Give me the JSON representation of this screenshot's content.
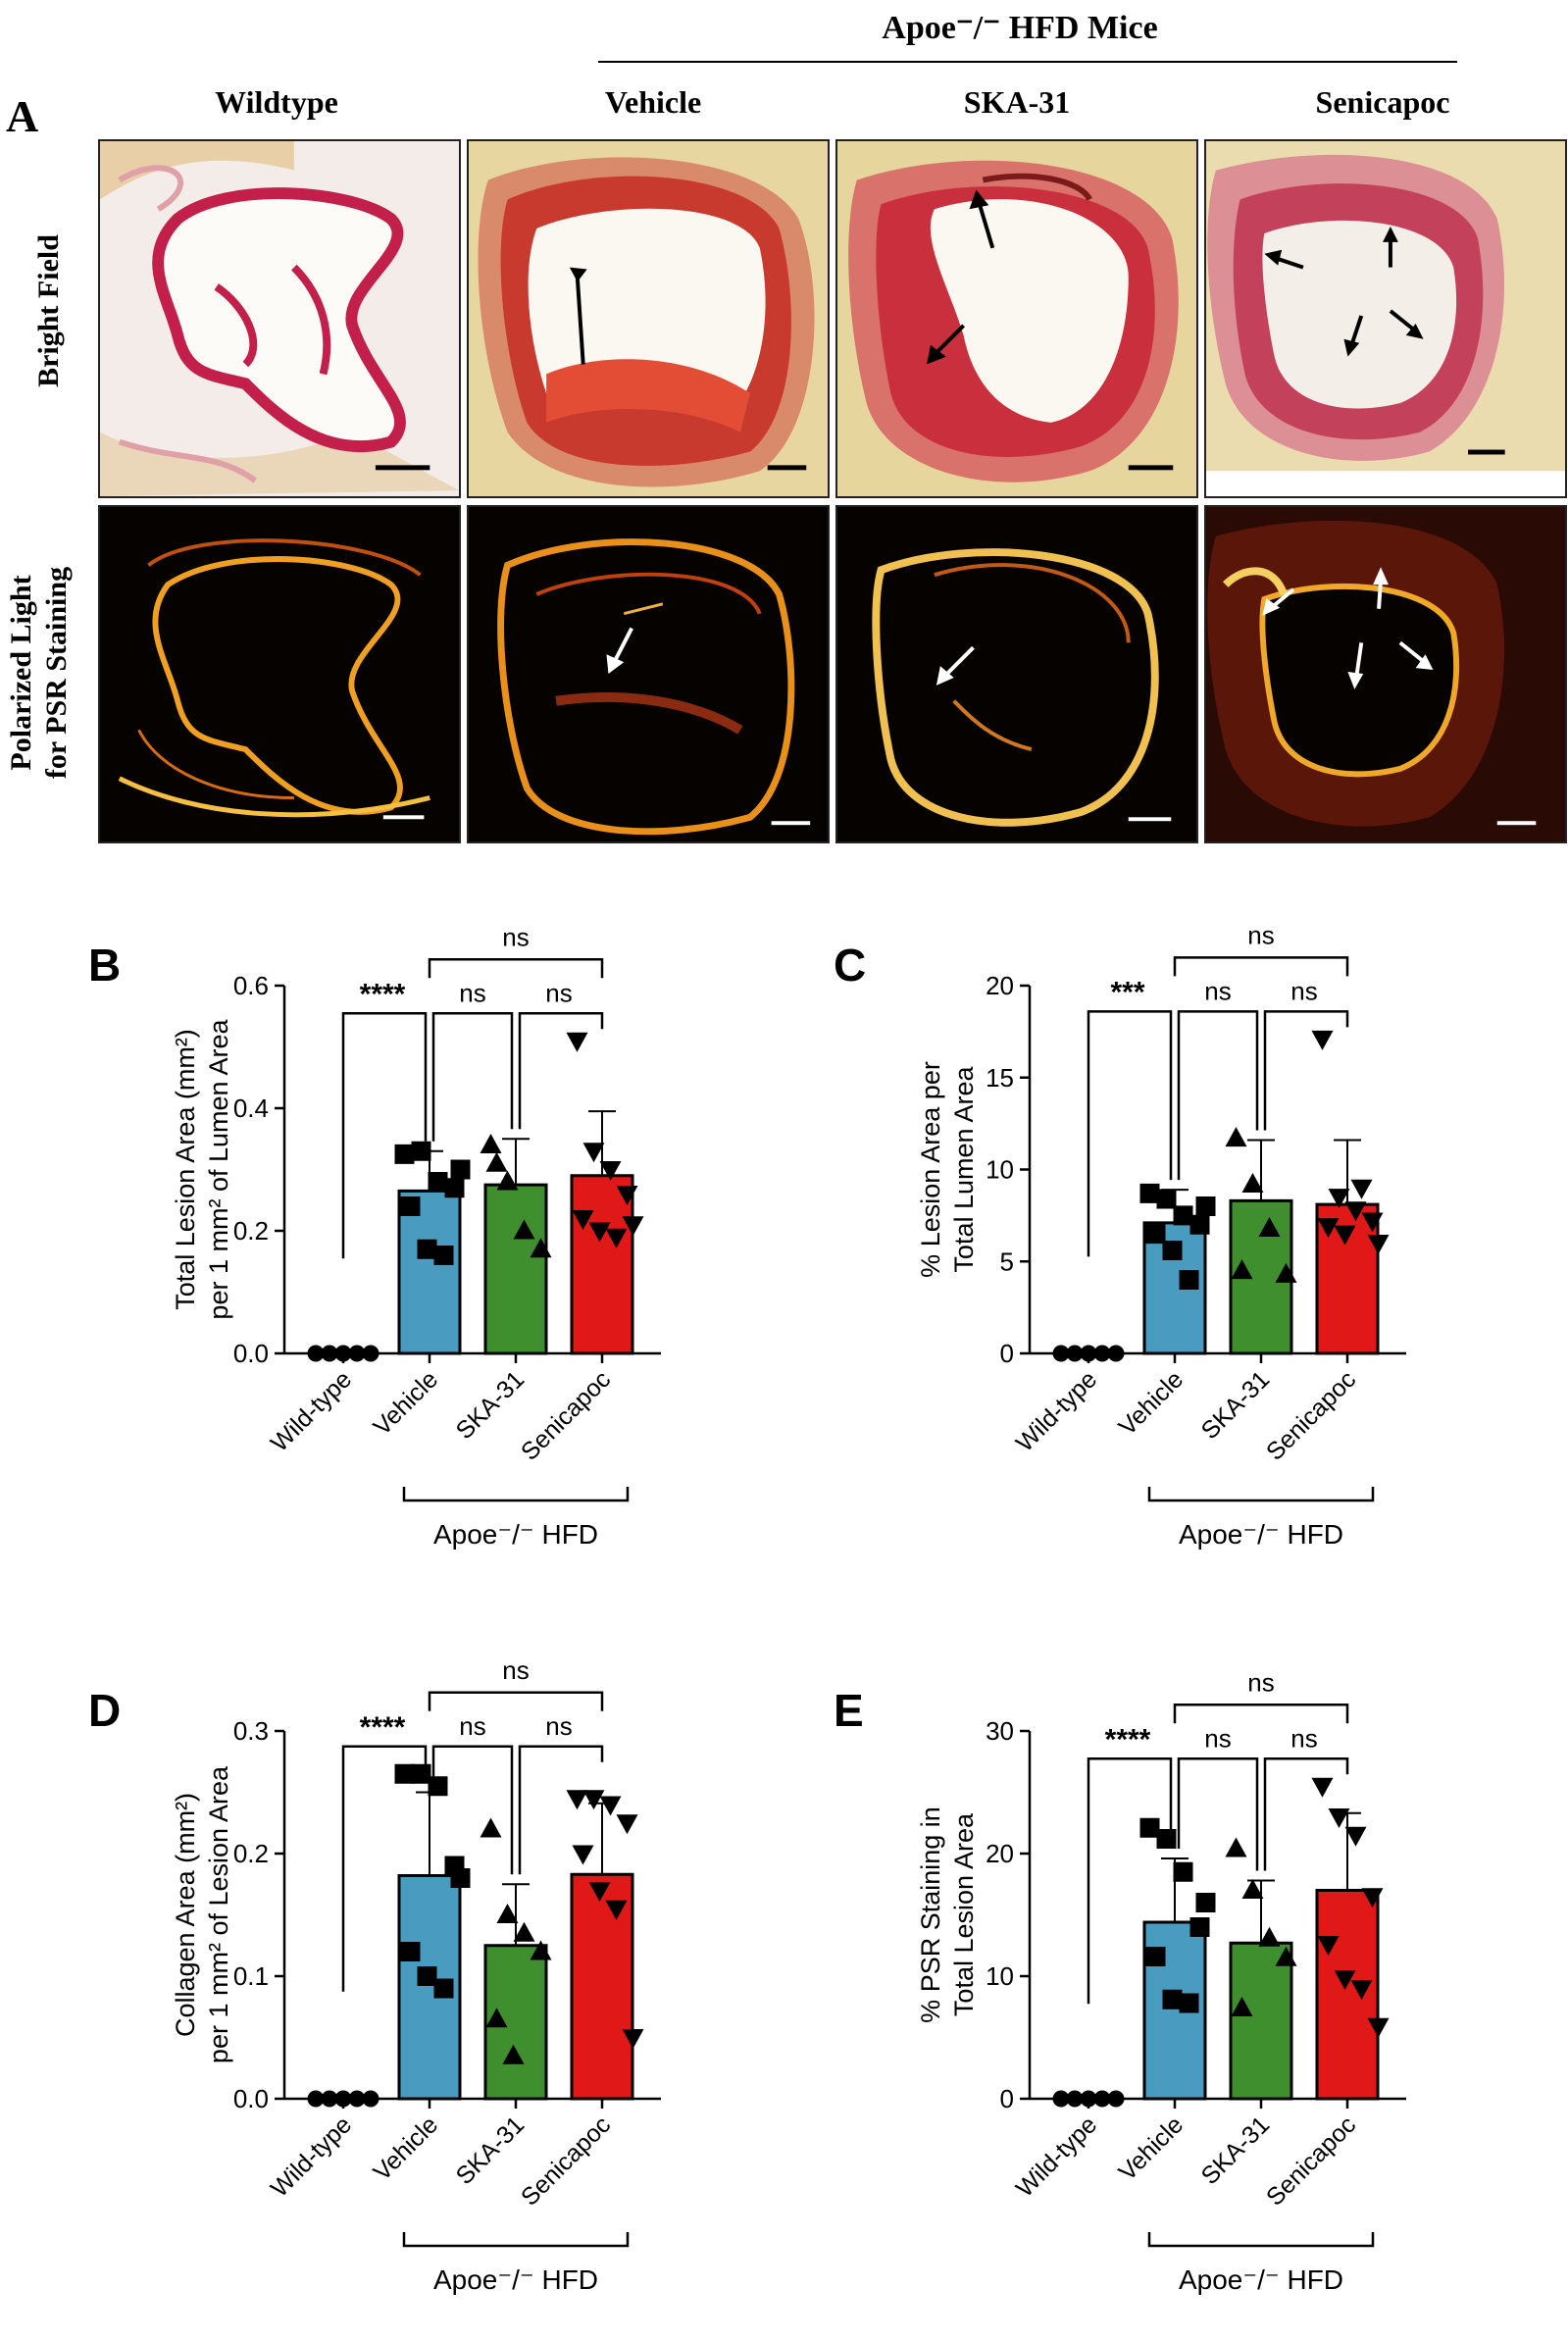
{
  "header": {
    "group_label": "Apoe⁻/⁻ HFD Mice",
    "panel_a_letter": "A",
    "columns": [
      "Wildtype",
      "Vehicle",
      "SKA-31",
      "Senicapoc"
    ],
    "rows": [
      "Bright Field",
      "Polarized Light\nfor PSR Staining"
    ]
  },
  "colors": {
    "vehicle": "#4a9bc0",
    "ska31": "#3f8f2f",
    "senicapoc": "#e01818",
    "stain_red": "#c8203c",
    "background_tissue": "#e9d6a0"
  },
  "chart_data": [
    {
      "letter": "B",
      "type": "bar",
      "categories": [
        "Wild-type",
        "Vehicle",
        "SKA-31",
        "Senicapoc"
      ],
      "group_label": "Apoe⁻/⁻ HFD",
      "ylabel_lines": [
        "Total Lesion Area (mm²)",
        "per 1 mm² of Lumen Area"
      ],
      "ylim": [
        0,
        0.6
      ],
      "yticks": [
        "0.0",
        "0.2",
        "0.4",
        "0.6"
      ],
      "ytick_values": [
        0,
        0.2,
        0.4,
        0.6
      ],
      "means": [
        0,
        0.265,
        0.275,
        0.29
      ],
      "sd": [
        0,
        0.065,
        0.075,
        0.105
      ],
      "points": [
        [
          0,
          0,
          0,
          0,
          0
        ],
        [
          0.325,
          0.33,
          0.28,
          0.27,
          0.24,
          0.17,
          0.16,
          0.3
        ],
        [
          0.34,
          0.28,
          0.2,
          0.17,
          0.31
        ],
        [
          0.51,
          0.33,
          0.3,
          0.26,
          0.22,
          0.2,
          0.19,
          0.21
        ]
      ],
      "markers": [
        "circle",
        "square",
        "triangle-up",
        "triangle-down"
      ],
      "significance": {
        "top": "ns",
        "pairs": [
          "****",
          "ns",
          "ns"
        ]
      }
    },
    {
      "letter": "C",
      "type": "bar",
      "categories": [
        "Wild-type",
        "Vehicle",
        "SKA-31",
        "Senicapoc"
      ],
      "group_label": "Apoe⁻/⁻ HFD",
      "ylabel_lines": [
        "% Lesion Area per",
        "Total Lumen Area"
      ],
      "ylim": [
        0,
        20
      ],
      "yticks": [
        "0",
        "5",
        "10",
        "15",
        "20"
      ],
      "ytick_values": [
        0,
        5,
        10,
        15,
        20
      ],
      "means": [
        0,
        7.1,
        8.3,
        8.1
      ],
      "sd": [
        0,
        1.8,
        3.3,
        3.5
      ],
      "points": [
        [
          0,
          0,
          0,
          0,
          0
        ],
        [
          8.7,
          8.4,
          7.5,
          7.0,
          6.5,
          5.6,
          4.0,
          8.0
        ],
        [
          11.7,
          9.2,
          6.8,
          4.3,
          4.5
        ],
        [
          17.1,
          8.5,
          7.8,
          7.2,
          6.9,
          6.5,
          9.0,
          6.0
        ]
      ],
      "markers": [
        "circle",
        "square",
        "triangle-up",
        "triangle-down"
      ],
      "significance": {
        "top": "ns",
        "pairs": [
          "***",
          "ns",
          "ns"
        ]
      }
    },
    {
      "letter": "D",
      "type": "bar",
      "categories": [
        "Wild-type",
        "Vehicle",
        "SKA-31",
        "Senicapoc"
      ],
      "group_label": "Apoe⁻/⁻ HFD",
      "ylabel_lines": [
        "Collagen Area (mm²)",
        "per 1 mm² of Lesion Area"
      ],
      "ylim": [
        0,
        0.3
      ],
      "yticks": [
        "0.0",
        "0.1",
        "0.2",
        "0.3"
      ],
      "ytick_values": [
        0,
        0.1,
        0.2,
        0.3
      ],
      "means": [
        0,
        0.182,
        0.125,
        0.183
      ],
      "sd": [
        0,
        0.068,
        0.05,
        0.058
      ],
      "points": [
        [
          0,
          0,
          0,
          0,
          0
        ],
        [
          0.265,
          0.265,
          0.255,
          0.19,
          0.12,
          0.1,
          0.09,
          0.18
        ],
        [
          0.22,
          0.15,
          0.135,
          0.12,
          0.065,
          0.035
        ],
        [
          0.245,
          0.245,
          0.24,
          0.225,
          0.2,
          0.17,
          0.155,
          0.05
        ]
      ],
      "markers": [
        "circle",
        "square",
        "triangle-up",
        "triangle-down"
      ],
      "significance": {
        "top": "ns",
        "pairs": [
          "****",
          "ns",
          "ns"
        ]
      }
    },
    {
      "letter": "E",
      "type": "bar",
      "categories": [
        "Wild-type",
        "Vehicle",
        "SKA-31",
        "Senicapoc"
      ],
      "group_label": "Apoe⁻/⁻ HFD",
      "ylabel_lines": [
        "% PSR Staining in",
        "Total Lesion Area"
      ],
      "ylim": [
        0,
        30
      ],
      "yticks": [
        "0",
        "10",
        "20",
        "30"
      ],
      "ytick_values": [
        0,
        10,
        20,
        30
      ],
      "means": [
        0,
        14.4,
        12.7,
        17.0
      ],
      "sd": [
        0,
        5.2,
        5.1,
        6.3
      ],
      "points": [
        [
          0,
          0,
          0,
          0,
          0
        ],
        [
          22.1,
          21.2,
          18.5,
          14.0,
          11.6,
          8.1,
          7.8,
          16.0
        ],
        [
          20.4,
          17.0,
          13.1,
          11.5,
          7.4
        ],
        [
          25.5,
          23.0,
          21.5,
          16.5,
          12.6,
          9.8,
          9.0,
          5.9
        ]
      ],
      "markers": [
        "circle",
        "square",
        "triangle-up",
        "triangle-down"
      ],
      "significance": {
        "top": "ns",
        "pairs": [
          "****",
          "ns",
          "ns"
        ]
      }
    }
  ]
}
